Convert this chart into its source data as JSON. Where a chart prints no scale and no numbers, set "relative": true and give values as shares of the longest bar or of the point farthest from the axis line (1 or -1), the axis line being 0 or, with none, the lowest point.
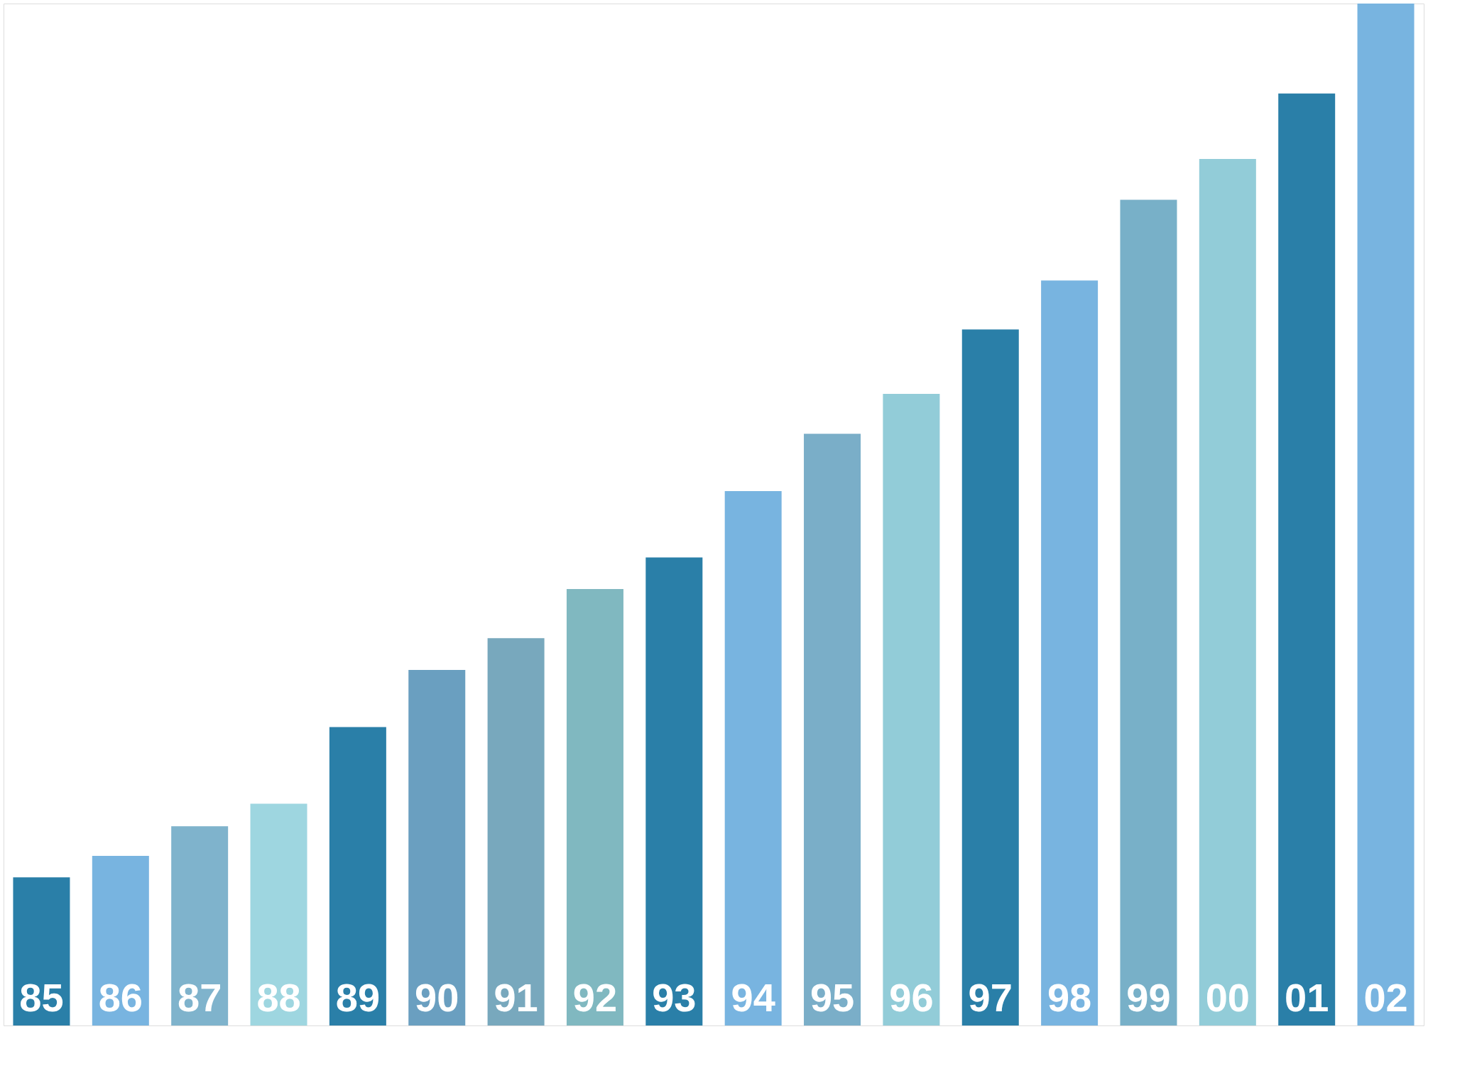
{
  "chart_data": {
    "type": "bar",
    "relative": true,
    "categories": [
      "85",
      "86",
      "87",
      "88",
      "89",
      "90",
      "91",
      "92",
      "93",
      "94",
      "95",
      "96",
      "97",
      "98",
      "99",
      "00",
      "01",
      "02"
    ],
    "values": [
      0.145,
      0.166,
      0.195,
      0.217,
      0.292,
      0.348,
      0.379,
      0.427,
      0.458,
      0.523,
      0.579,
      0.618,
      0.681,
      0.729,
      0.808,
      0.848,
      0.912,
      1
    ],
    "colors": [
      "#2a7fa8",
      "#78b4e0",
      "#7fb3cc",
      "#9ed6e0",
      "#2a7fa8",
      "#6a9fc0",
      "#78a8bd",
      "#80b8c0",
      "#2a7fa8",
      "#78b4e0",
      "#7aaec8",
      "#92ccd8",
      "#2a7fa8",
      "#78b4e0",
      "#78b0c8",
      "#92ccd8",
      "#2a7fa8",
      "#78b4e0"
    ]
  }
}
